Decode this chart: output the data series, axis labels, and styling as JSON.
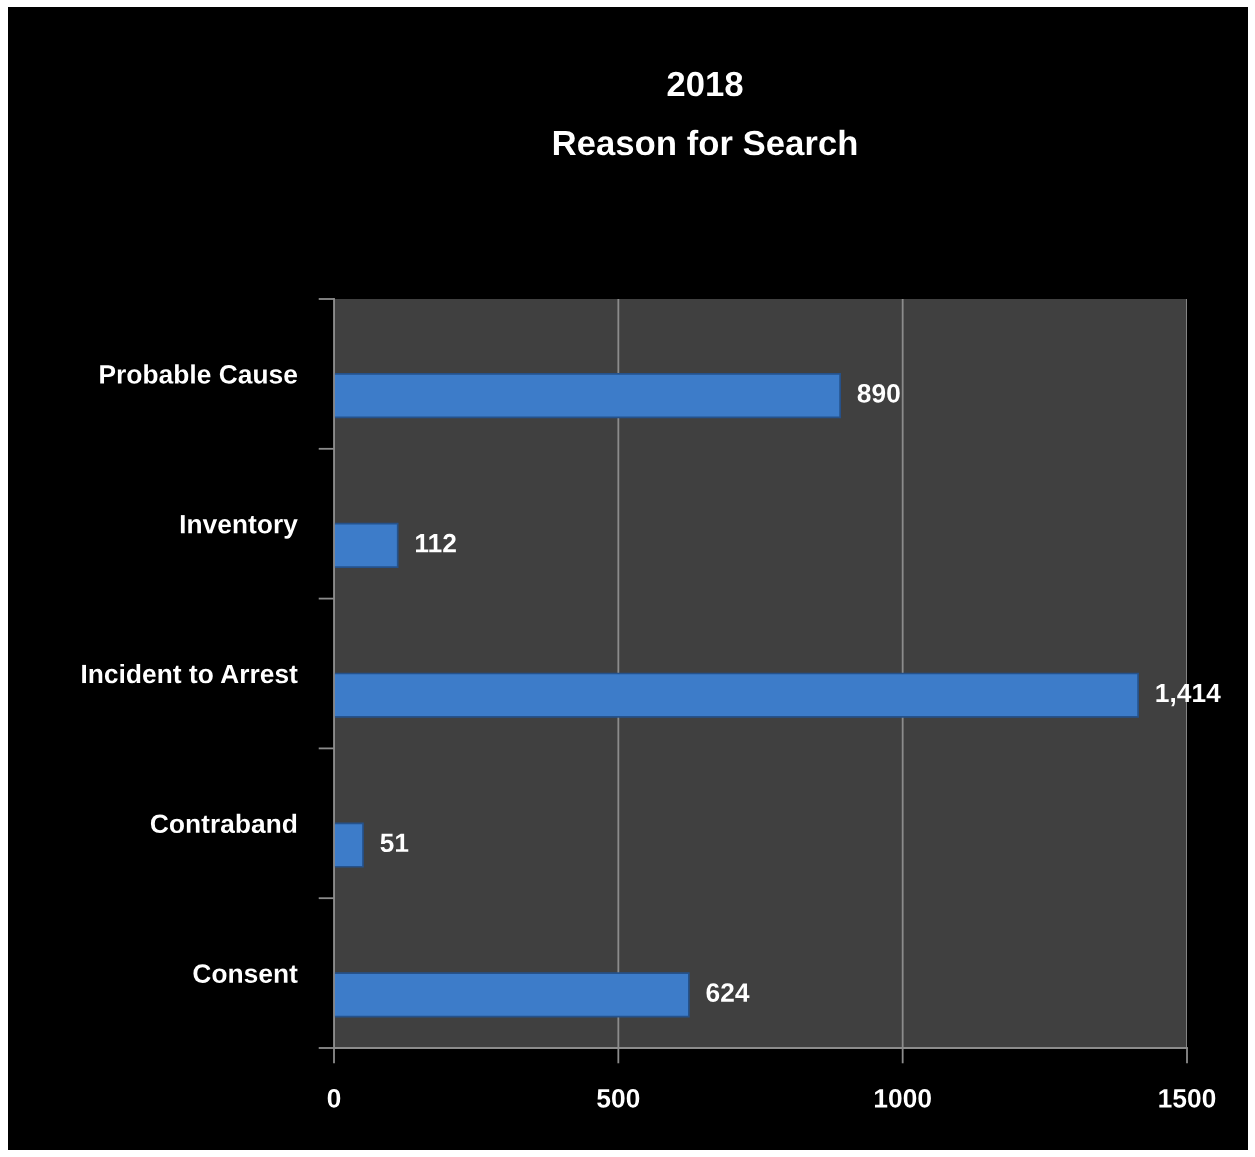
{
  "chart_data": {
    "type": "bar",
    "orientation": "horizontal",
    "title": "2018",
    "subtitle": "Reason for Search",
    "categories": [
      "Probable Cause",
      "Inventory",
      "Incident to Arrest",
      "Contraband",
      "Consent"
    ],
    "values": [
      890,
      112,
      1414,
      51,
      624
    ],
    "value_labels": [
      "890",
      "112",
      "1,414",
      "51",
      "624"
    ],
    "color": "#3d7cc9",
    "xlim": [
      0,
      1500
    ],
    "xticks": [
      0,
      500,
      1000,
      1500
    ],
    "grid": "x"
  }
}
